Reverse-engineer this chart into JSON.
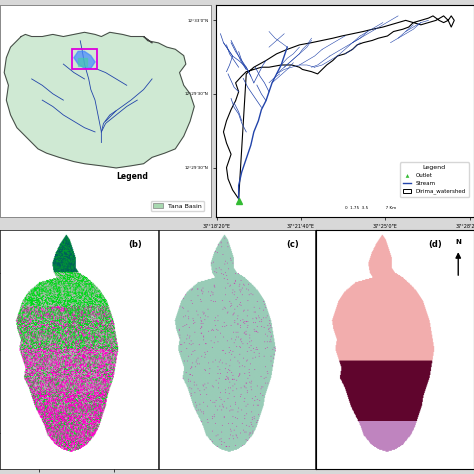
{
  "fig_bg": "#d8d8d8",
  "tana_basin_color": "#a8d8b0",
  "stream_color": "#2244aa",
  "ws_outline_color": "#111111",
  "outlet_color": "#33bb33",
  "map_b_green": [
    0.0,
    0.85,
    0.1
  ],
  "map_b_magenta": [
    1.0,
    0.0,
    0.8
  ],
  "map_b_grey": [
    0.72,
    0.72,
    0.72
  ],
  "map_b_teal": [
    0.0,
    0.38,
    0.35
  ],
  "map_c_mint": [
    0.6,
    0.8,
    0.72
  ],
  "map_c_spot": [
    0.8,
    0.2,
    0.68
  ],
  "map_d_pink": [
    0.95,
    0.68,
    0.68
  ],
  "map_d_darkpurple": [
    0.38,
    0.02,
    0.18
  ],
  "map_d_lightpurple": [
    0.75,
    0.52,
    0.75
  ],
  "panel_border": "#555555"
}
